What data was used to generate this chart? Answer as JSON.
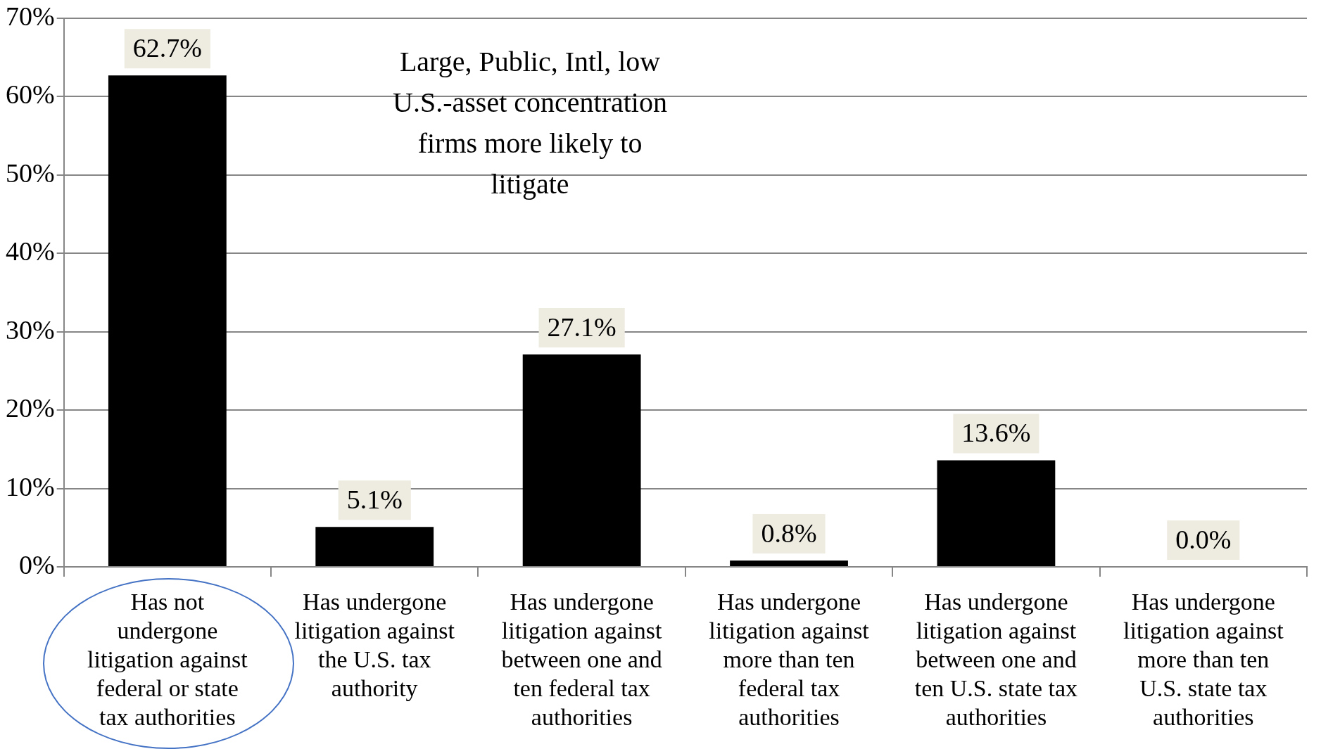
{
  "chart_data": {
    "type": "bar",
    "categories": [
      "Has not undergone litigation against federal or state tax authorities",
      "Has undergone litigation against the U.S. tax authority",
      "Has undergone litigation against between one and ten federal tax authorities",
      "Has undergone litigation against more than ten federal tax authorities",
      "Has undergone litigation against between one and ten U.S. state tax authorities",
      "Has undergone litigation against more than ten U.S. state tax authorities"
    ],
    "values": [
      62.7,
      5.1,
      27.1,
      0.8,
      13.6,
      0.0
    ],
    "value_labels": [
      "62.7%",
      "5.1%",
      "27.1%",
      "0.8%",
      "13.6%",
      "0.0%"
    ],
    "color": "#000000",
    "ylim": [
      0,
      70
    ],
    "yticks": [
      {
        "value": 0,
        "label": "0%"
      },
      {
        "value": 10,
        "label": "10%"
      },
      {
        "value": 20,
        "label": "20%"
      },
      {
        "value": 30,
        "label": "30%"
      },
      {
        "value": 40,
        "label": "40%"
      },
      {
        "value": 50,
        "label": "50%"
      },
      {
        "value": 60,
        "label": "60%"
      },
      {
        "value": 70,
        "label": "70%"
      }
    ],
    "grid": "y",
    "annotations": [
      "Large, Public, Intl, low U.S.-asset concentration firms more likely to litigate"
    ]
  }
}
